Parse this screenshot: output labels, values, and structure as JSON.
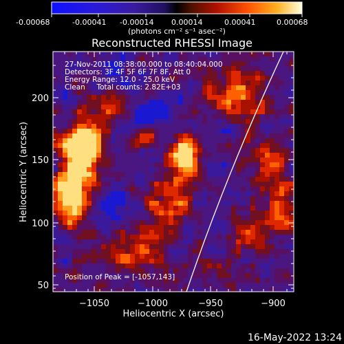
{
  "colorbar": {
    "tick_labels": [
      "-0.00068",
      "-0.00041",
      "-0.00014",
      "0.00014",
      "0.00041",
      "0.00068"
    ],
    "unit_label": "(photons cm⁻² s⁻¹ asec⁻²)"
  },
  "plot": {
    "title": "Reconstructed RHESSI Image",
    "xlabel": "Heliocentric X (arcsec)",
    "ylabel": "Heliocentric Y (arcsec)",
    "x_ticks": [
      "−1050",
      "−1000",
      "−950",
      "−900"
    ],
    "y_ticks": [
      "50",
      "100",
      "150",
      "200"
    ],
    "annotations": [
      "27-Nov-2011 08:38:00.000 to 08:40:04.000",
      "Detectors: 3F 4F 5F 6F 7F 8F, Att 0",
      "Energy Range: 12.0 - 25.0 keV",
      "Clean     Total counts: 2.82E+03"
    ],
    "peak_label": "Position of Peak = [-1057,143]"
  },
  "footer": {
    "timestamp": "16-May-2022 13:24"
  },
  "colors": {
    "background": "#000000",
    "limb_line": "#ffffff"
  }
}
